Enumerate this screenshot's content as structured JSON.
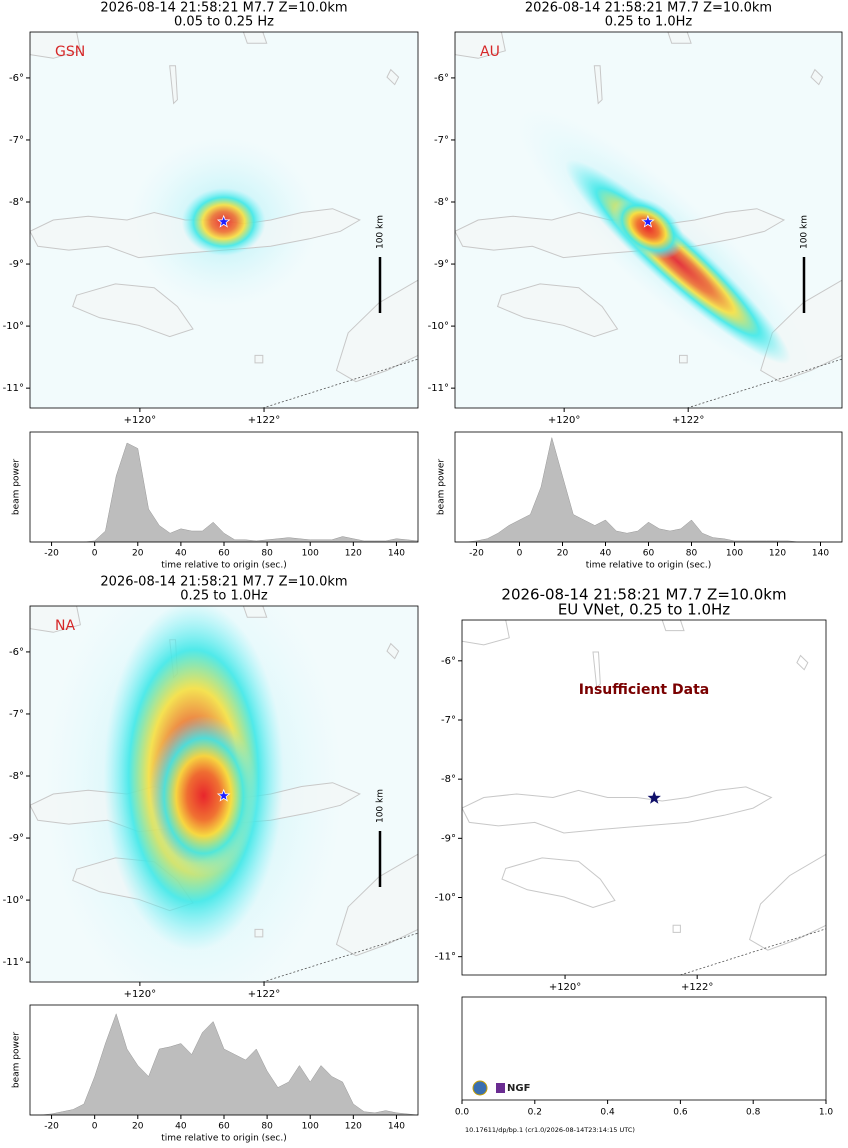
{
  "chart_data": [
    {
      "type": "map",
      "title": "2026-08-14 21:58:21 M7.7 Z=10.0km",
      "subtitle": "0.05 to 0.25 Hz",
      "label": "GSN",
      "scale_bar": "100 km",
      "xlim": [
        118.23,
        124.48
      ],
      "ylim": [
        -11.32,
        -5.26
      ],
      "xticks": [
        {
          "value": 120,
          "label": "+120°"
        },
        {
          "value": 122,
          "label": "+122°"
        }
      ],
      "yticks": [
        {
          "value": -6,
          "label": "-6°"
        },
        {
          "value": -7,
          "label": "-7°"
        },
        {
          "value": -8,
          "label": "-8°"
        },
        {
          "value": -9,
          "label": "-9°"
        },
        {
          "value": -10,
          "label": "-10°"
        },
        {
          "value": -11,
          "label": "-11°"
        }
      ],
      "epicenter": {
        "lon": 121.35,
        "lat": -8.32
      },
      "star_color": "#2020ff"
    },
    {
      "type": "map",
      "title": "2026-08-14 21:58:21 M7.7 Z=10.0km",
      "subtitle": "0.25 to 1.0Hz",
      "label": "AU",
      "scale_bar": "100 km",
      "xlim": [
        118.24,
        124.48
      ],
      "ylim": [
        -11.32,
        -5.26
      ],
      "xticks": [
        {
          "value": 120,
          "label": "+120°"
        },
        {
          "value": 122,
          "label": "+122°"
        }
      ],
      "yticks": [
        {
          "value": -6,
          "label": "-6°"
        },
        {
          "value": -7,
          "label": "-7°"
        },
        {
          "value": -8,
          "label": "-8°"
        },
        {
          "value": -9,
          "label": "-9°"
        },
        {
          "value": -10,
          "label": "-10°"
        },
        {
          "value": -11,
          "label": "-11°"
        }
      ],
      "epicenter": {
        "lon": 121.35,
        "lat": -8.32
      },
      "star_color": "#2020ff"
    },
    {
      "type": "map",
      "title": "2026-08-14 21:58:21 M7.7 Z=10.0km",
      "subtitle": "0.25 to 1.0Hz",
      "label": "NA",
      "scale_bar": "100 km",
      "xlim": [
        118.23,
        124.48
      ],
      "ylim": [
        -11.32,
        -5.26
      ],
      "xticks": [
        {
          "value": 120,
          "label": "+120°"
        },
        {
          "value": 122,
          "label": "+122°"
        }
      ],
      "yticks": [
        {
          "value": -6,
          "label": "-6°"
        },
        {
          "value": -7,
          "label": "-7°"
        },
        {
          "value": -8,
          "label": "-8°"
        },
        {
          "value": -9,
          "label": "-9°"
        },
        {
          "value": -10,
          "label": "-10°"
        },
        {
          "value": -11,
          "label": "-11°"
        }
      ],
      "epicenter": {
        "lon": 121.35,
        "lat": -8.32
      },
      "star_color": "#2020ff"
    },
    {
      "type": "map",
      "title": "2026-08-14 21:58:21 M7.7 Z=10.0km",
      "subtitle": "EU VNet, 0.25 to 1.0Hz",
      "annotation": "Insufficient Data",
      "xlim": [
        118.44,
        123.95
      ],
      "ylim": [
        -11.31,
        -5.31
      ],
      "xticks": [
        {
          "value": 120,
          "label": "+120°"
        },
        {
          "value": 122,
          "label": "+122°"
        }
      ],
      "yticks": [
        {
          "value": -6,
          "label": "-6°"
        },
        {
          "value": -7,
          "label": "-7°"
        },
        {
          "value": -8,
          "label": "-8°"
        },
        {
          "value": -9,
          "label": "-9°"
        },
        {
          "value": -10,
          "label": "-10°"
        },
        {
          "value": -11,
          "label": "-11°"
        }
      ],
      "epicenter": {
        "lon": 121.35,
        "lat": -8.32
      },
      "star_color": "#10106a"
    },
    {
      "type": "area",
      "ylabel": "beam power",
      "xlabel": "time relative to origin (sec.)",
      "color": "#bdbdbd",
      "xlim": [
        -30,
        150
      ],
      "ylim": [
        0,
        1
      ],
      "xticks": [
        -20,
        0,
        20,
        40,
        60,
        80,
        100,
        120,
        140
      ],
      "x": [
        -30,
        -25,
        -20,
        -15,
        -10,
        -5,
        0,
        5,
        10,
        15,
        20,
        25,
        30,
        35,
        40,
        45,
        50,
        55,
        60,
        65,
        70,
        75,
        80,
        85,
        90,
        95,
        100,
        105,
        110,
        115,
        120,
        125,
        130,
        135,
        140,
        145,
        150
      ],
      "values": [
        0,
        0,
        0,
        0,
        0,
        0,
        0.01,
        0.1,
        0.6,
        0.9,
        0.85,
        0.3,
        0.15,
        0.08,
        0.12,
        0.1,
        0.1,
        0.18,
        0.08,
        0.02,
        0.02,
        0.01,
        0.02,
        0.03,
        0.04,
        0.03,
        0.02,
        0.02,
        0.02,
        0.05,
        0.03,
        0.01,
        0.01,
        0.01,
        0.03,
        0.02,
        0.01
      ]
    },
    {
      "type": "area",
      "ylabel": "beam power",
      "xlabel": "time relative to origin (sec.)",
      "color": "#bdbdbd",
      "xlim": [
        -30,
        150
      ],
      "ylim": [
        0,
        1
      ],
      "xticks": [
        -20,
        0,
        20,
        40,
        60,
        80,
        100,
        120,
        140
      ],
      "x": [
        -30,
        -25,
        -20,
        -15,
        -10,
        -5,
        0,
        5,
        10,
        15,
        20,
        25,
        30,
        35,
        40,
        45,
        50,
        55,
        60,
        65,
        70,
        75,
        80,
        85,
        90,
        95,
        100,
        105,
        110,
        115,
        120,
        125,
        130,
        135,
        140,
        145,
        150
      ],
      "values": [
        0,
        0,
        0.01,
        0.03,
        0.08,
        0.15,
        0.2,
        0.25,
        0.5,
        0.95,
        0.6,
        0.25,
        0.2,
        0.15,
        0.2,
        0.1,
        0.08,
        0.1,
        0.18,
        0.12,
        0.1,
        0.12,
        0.2,
        0.08,
        0.04,
        0.03,
        0.01,
        0.01,
        0.01,
        0.01,
        0.01,
        0.01,
        0,
        0,
        0,
        0,
        0
      ]
    },
    {
      "type": "area",
      "ylabel": "beam power",
      "xlabel": "time relative to origin (sec.)",
      "color": "#bdbdbd",
      "xlim": [
        -30,
        150
      ],
      "ylim": [
        0,
        1
      ],
      "xticks": [
        -20,
        0,
        20,
        40,
        60,
        80,
        100,
        120,
        140
      ],
      "x": [
        -30,
        -25,
        -20,
        -15,
        -10,
        -5,
        0,
        5,
        10,
        15,
        20,
        25,
        30,
        35,
        40,
        45,
        50,
        55,
        60,
        65,
        70,
        75,
        80,
        85,
        90,
        95,
        100,
        105,
        110,
        115,
        120,
        125,
        130,
        135,
        140,
        145,
        150
      ],
      "values": [
        0,
        0,
        0.01,
        0.03,
        0.05,
        0.1,
        0.35,
        0.65,
        0.92,
        0.6,
        0.45,
        0.35,
        0.6,
        0.62,
        0.65,
        0.55,
        0.75,
        0.85,
        0.6,
        0.55,
        0.5,
        0.6,
        0.4,
        0.25,
        0.3,
        0.45,
        0.3,
        0.45,
        0.35,
        0.3,
        0.1,
        0.03,
        0.02,
        0.04,
        0.02,
        0.01,
        0
      ]
    },
    {
      "type": "empty",
      "xlim": [
        0,
        1
      ],
      "xticks": [
        {
          "value": 0,
          "label": "0.0"
        },
        {
          "value": 0.2,
          "label": "0.2"
        },
        {
          "value": 0.4,
          "label": "0.4"
        },
        {
          "value": 0.6,
          "label": "0.6"
        },
        {
          "value": 0.8,
          "label": "0.8"
        },
        {
          "value": 1,
          "label": "1.0"
        }
      ],
      "logo": "NGF",
      "footer": "10.17611/dp/bp.1 (cr1.0/2026-08-14T23:14:15 UTC)"
    }
  ]
}
